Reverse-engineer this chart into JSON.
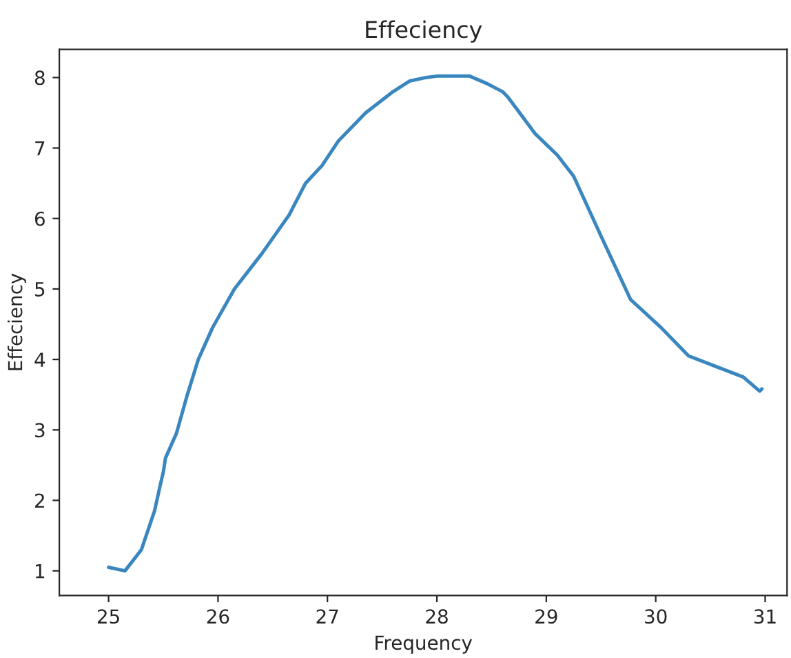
{
  "chart_data": {
    "type": "line",
    "title": "Effeciency",
    "xlabel": "Frequency",
    "ylabel": "Effeciency",
    "x": [
      25.0,
      25.15,
      25.3,
      25.42,
      25.47,
      25.5,
      25.52,
      25.62,
      25.72,
      25.82,
      25.95,
      26.15,
      26.4,
      26.65,
      26.8,
      26.95,
      27.1,
      27.35,
      27.6,
      27.75,
      27.9,
      28.0,
      28.3,
      28.45,
      28.6,
      28.65,
      28.9,
      29.1,
      29.25,
      29.5,
      29.77,
      30.05,
      30.3,
      30.55,
      30.8,
      30.95,
      30.97
    ],
    "series": [
      {
        "color": "#3a87c0",
        "values": [
          1.05,
          1.0,
          1.3,
          1.85,
          2.2,
          2.4,
          2.6,
          2.95,
          3.5,
          4.0,
          4.45,
          5.0,
          5.5,
          6.05,
          6.5,
          6.75,
          7.1,
          7.5,
          7.8,
          7.95,
          8.0,
          8.02,
          8.02,
          7.92,
          7.8,
          7.72,
          7.2,
          6.9,
          6.6,
          5.75,
          4.85,
          4.45,
          4.05,
          3.9,
          3.75,
          3.55,
          3.58
        ]
      }
    ],
    "xlim": [
      24.55,
      31.2
    ],
    "ylim": [
      0.65,
      8.4
    ],
    "xticks": [
      25,
      26,
      27,
      28,
      29,
      30,
      31
    ],
    "yticks": [
      1,
      2,
      3,
      4,
      5,
      6,
      7,
      8
    ],
    "grid": false,
    "legend": false,
    "marker": "none",
    "line_style": "solid"
  }
}
